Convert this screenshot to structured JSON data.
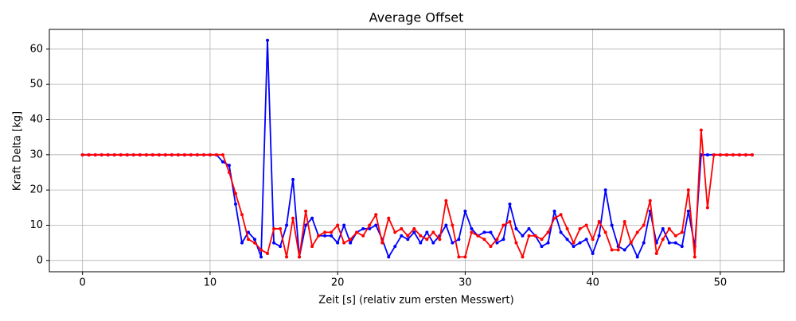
{
  "chart_data": {
    "type": "line",
    "title": "Average Offset",
    "x_label": "Zeit [s] (relativ zum ersten Messwert)",
    "y_label": "Kraft Delta [kg]",
    "x": [
      0,
      0.5,
      1,
      1.5,
      2,
      2.5,
      3,
      3.5,
      4,
      4.5,
      5,
      5.5,
      6,
      6.5,
      7,
      7.5,
      8,
      8.5,
      9,
      9.5,
      10,
      10.5,
      11,
      11.5,
      12,
      12.5,
      13,
      13.5,
      14,
      14.5,
      15,
      15.5,
      16,
      16.5,
      17,
      17.5,
      18,
      18.5,
      19,
      19.5,
      20,
      20.5,
      21,
      21.5,
      22,
      22.5,
      23,
      23.5,
      24,
      24.5,
      25,
      25.5,
      26,
      26.5,
      27,
      27.5,
      28,
      28.5,
      29,
      29.5,
      30,
      30.5,
      31,
      31.5,
      32,
      32.5,
      33,
      33.5,
      34,
      34.5,
      35,
      35.5,
      36,
      36.5,
      37,
      37.5,
      38,
      38.5,
      39,
      39.5,
      40,
      40.5,
      41,
      41.5,
      42,
      42.5,
      43,
      43.5,
      44,
      44.5,
      45,
      45.5,
      46,
      46.5,
      47,
      47.5,
      48,
      48.5,
      49,
      49.5,
      50,
      50.5,
      51,
      51.5,
      52,
      52.5
    ],
    "series": [
      {
        "color": "#0000ff",
        "values": [
          30,
          30,
          30,
          30,
          30,
          30,
          30,
          30,
          30,
          30,
          30,
          30,
          30,
          30,
          30,
          30,
          30,
          30,
          30,
          30,
          30,
          30,
          28,
          27,
          16,
          5,
          8,
          6,
          1,
          62.5,
          5,
          4,
          10,
          23,
          1,
          10,
          12,
          7,
          7,
          7,
          5,
          10,
          5,
          8,
          9,
          9,
          10,
          6,
          1,
          4,
          7,
          6,
          8,
          5,
          8,
          5,
          7,
          10,
          5,
          6,
          14,
          9,
          7,
          8,
          8,
          5,
          6,
          16,
          9,
          7,
          9,
          7,
          4,
          5,
          14,
          8,
          6,
          4,
          5,
          6,
          2,
          7,
          20,
          10,
          4,
          3,
          5,
          1,
          5,
          14,
          5,
          9,
          5,
          5,
          4,
          14,
          4,
          30,
          30,
          30,
          30,
          30,
          30,
          30,
          30,
          30
        ]
      },
      {
        "color": "#ff0000",
        "values": [
          30,
          30,
          30,
          30,
          30,
          30,
          30,
          30,
          30,
          30,
          30,
          30,
          30,
          30,
          30,
          30,
          30,
          30,
          30,
          30,
          30,
          30,
          30,
          25,
          19,
          13,
          6,
          5,
          3,
          2,
          9,
          9,
          1,
          12,
          1,
          14,
          4,
          7,
          8,
          8,
          10,
          5,
          6,
          8,
          7,
          10,
          13,
          5,
          12,
          8,
          9,
          7,
          9,
          7,
          6,
          8,
          6,
          17,
          10,
          1,
          1,
          8,
          7,
          6,
          4,
          6,
          10,
          11,
          5,
          1,
          7,
          7,
          6,
          8,
          12,
          13,
          9,
          5,
          9,
          10,
          6,
          11,
          8,
          3,
          3,
          11,
          5,
          8,
          10,
          17,
          2,
          6,
          9,
          7,
          8,
          20,
          1,
          37,
          15,
          30,
          30,
          30,
          30,
          30,
          30,
          30
        ]
      }
    ],
    "xlim": [
      -2.6,
      55.0
    ],
    "ylim": [
      -3.2,
      65.6
    ],
    "xticks": [
      0,
      10,
      20,
      30,
      40,
      50
    ],
    "yticks": [
      0,
      10,
      20,
      30,
      40,
      50,
      60
    ],
    "grid": true
  }
}
